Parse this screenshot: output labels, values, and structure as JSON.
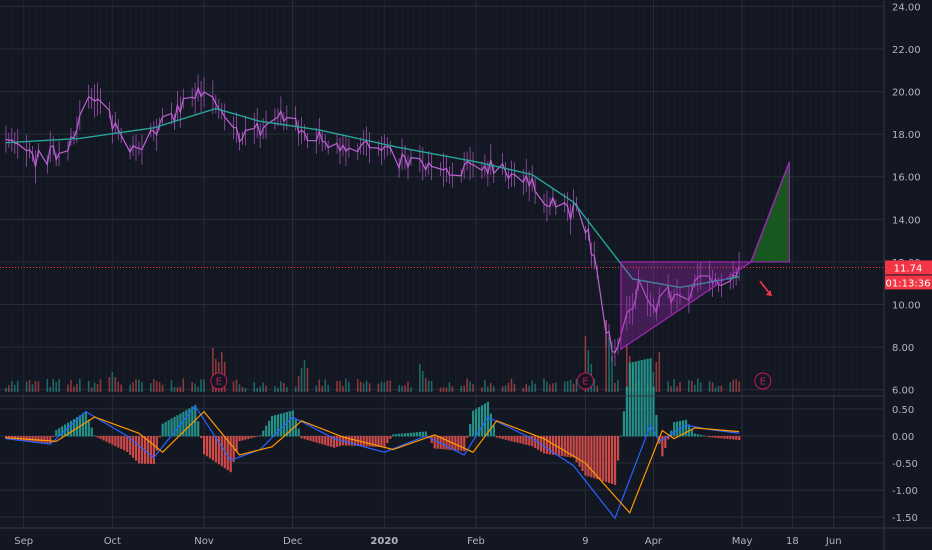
{
  "chart_data": [
    {
      "type": "candlestick",
      "panel": "price",
      "title": "",
      "y_ticks": [
        "24.00",
        "22.00",
        "20.00",
        "18.00",
        "16.00",
        "14.00",
        "12.00",
        "10.00",
        "8.00",
        "6.00"
      ],
      "ylim": [
        5.75,
        24.3
      ],
      "x_ticks": [
        "Sep",
        "Oct",
        "Nov",
        "Dec",
        "2020",
        "Feb",
        "9",
        "Apr",
        "May",
        "18",
        "Jun"
      ],
      "price_path": [
        [
          "2019-08-26",
          17.5
        ],
        [
          "2019-09-05",
          16.8
        ],
        [
          "2019-09-15",
          17.2
        ],
        [
          "2019-09-22",
          19.6
        ],
        [
          "2019-09-28",
          19.3
        ],
        [
          "2019-10-06",
          17.5
        ],
        [
          "2019-10-15",
          17.9
        ],
        [
          "2019-10-22",
          19.0
        ],
        [
          "2019-10-29",
          19.9
        ],
        [
          "2019-11-04",
          19.5
        ],
        [
          "2019-11-10",
          18.0
        ],
        [
          "2019-11-20",
          18.2
        ],
        [
          "2019-11-27",
          18.9
        ],
        [
          "2019-12-05",
          18.0
        ],
        [
          "2019-12-15",
          17.6
        ],
        [
          "2019-12-25",
          17.5
        ],
        [
          "2020-01-05",
          16.8
        ],
        [
          "2020-01-15",
          16.5
        ],
        [
          "2020-01-25",
          15.9
        ],
        [
          "2020-02-01",
          16.6
        ],
        [
          "2020-02-10",
          16.5
        ],
        [
          "2020-02-20",
          15.5
        ],
        [
          "2020-03-01",
          14.6
        ],
        [
          "2020-03-08",
          14.2
        ],
        [
          "2020-03-12",
          12.0
        ],
        [
          "2020-03-16",
          9.0
        ],
        [
          "2020-03-19",
          7.5
        ],
        [
          "2020-03-23",
          9.2
        ],
        [
          "2020-03-27",
          11.0
        ],
        [
          "2020-04-01",
          9.8
        ],
        [
          "2020-04-06",
          10.4
        ],
        [
          "2020-04-12",
          10.5
        ],
        [
          "2020-04-18",
          11.1
        ],
        [
          "2020-04-24",
          11.3
        ],
        [
          "2020-04-30",
          11.6
        ]
      ],
      "moving_average": [
        [
          "2019-08-26",
          17.6
        ],
        [
          "2019-09-20",
          17.8
        ],
        [
          "2019-10-15",
          18.3
        ],
        [
          "2019-11-05",
          19.2
        ],
        [
          "2019-11-20",
          18.6
        ],
        [
          "2019-12-10",
          18.2
        ],
        [
          "2020-01-05",
          17.4
        ],
        [
          "2020-02-01",
          16.7
        ],
        [
          "2020-02-20",
          16.1
        ],
        [
          "2020-03-05",
          14.8
        ],
        [
          "2020-03-15",
          13.0
        ],
        [
          "2020-03-25",
          11.2
        ],
        [
          "2020-04-10",
          10.8
        ],
        [
          "2020-04-30",
          11.3
        ]
      ],
      "volume_spikes": [
        [
          "2019-10-01",
          0.25
        ],
        [
          "2019-11-04",
          0.55
        ],
        [
          "2019-11-07",
          0.5
        ],
        [
          "2019-12-05",
          0.4
        ],
        [
          "2020-01-13",
          0.35
        ],
        [
          "2020-03-09",
          0.7
        ],
        [
          "2020-03-16",
          0.9
        ],
        [
          "2020-03-23",
          0.6
        ],
        [
          "2020-04-03",
          0.5
        ]
      ],
      "earnings_markers": [
        {
          "date": "2019-11-06",
          "label": "E"
        },
        {
          "date": "2020-03-09",
          "label": "E"
        },
        {
          "date": "2020-05-08",
          "label": "E"
        }
      ],
      "drawings": {
        "resistance_level": 12.0,
        "triangle": {
          "apex": [
            "2020-05-04",
            12.0
          ],
          "top_left": [
            "2020-03-21",
            12.0
          ],
          "bottom_left": [
            "2020-03-21",
            7.9
          ]
        },
        "target_box": {
          "from": [
            "2020-05-04",
            12.0
          ],
          "to_date": "2020-05-17",
          "target": 16.7
        },
        "arrow": {
          "from": [
            "2020-05-07",
            11.1
          ],
          "to": [
            "2020-05-11",
            10.4
          ],
          "color": "#f23645"
        }
      },
      "last_price": {
        "value": 11.74,
        "label": "11.74",
        "countdown": "01:13:36",
        "color": "#f23645"
      }
    },
    {
      "type": "macd",
      "panel": "indicator",
      "y_ticks": [
        "0.50",
        "0.00",
        "-0.50",
        "-1.00",
        "-1.50"
      ],
      "ylim": [
        -1.7,
        0.72
      ],
      "macd_line": [
        [
          "2019-08-26",
          -0.05
        ],
        [
          "2019-09-10",
          -0.15
        ],
        [
          "2019-09-22",
          0.45
        ],
        [
          "2019-10-06",
          0.0
        ],
        [
          "2019-10-15",
          -0.4
        ],
        [
          "2019-10-29",
          0.55
        ],
        [
          "2019-11-10",
          -0.45
        ],
        [
          "2019-11-20",
          -0.25
        ],
        [
          "2019-12-01",
          0.35
        ],
        [
          "2019-12-15",
          -0.05
        ],
        [
          "2020-01-01",
          -0.3
        ],
        [
          "2020-01-15",
          0.0
        ],
        [
          "2020-01-28",
          -0.35
        ],
        [
          "2020-02-05",
          0.35
        ],
        [
          "2020-02-20",
          -0.05
        ],
        [
          "2020-03-05",
          -0.55
        ],
        [
          "2020-03-19",
          -1.52
        ],
        [
          "2020-03-31",
          0.2
        ],
        [
          "2020-04-03",
          -0.1
        ],
        [
          "2020-04-12",
          0.2
        ],
        [
          "2020-04-20",
          0.12
        ],
        [
          "2020-04-30",
          0.05
        ]
      ],
      "signal_line": [
        [
          "2019-08-26",
          -0.03
        ],
        [
          "2019-09-12",
          -0.1
        ],
        [
          "2019-09-25",
          0.35
        ],
        [
          "2019-10-10",
          0.05
        ],
        [
          "2019-10-18",
          -0.3
        ],
        [
          "2019-11-01",
          0.45
        ],
        [
          "2019-11-13",
          -0.35
        ],
        [
          "2019-11-24",
          -0.2
        ],
        [
          "2019-12-04",
          0.28
        ],
        [
          "2019-12-18",
          -0.02
        ],
        [
          "2020-01-04",
          -0.25
        ],
        [
          "2020-01-18",
          0.02
        ],
        [
          "2020-01-31",
          -0.3
        ],
        [
          "2020-02-08",
          0.28
        ],
        [
          "2020-02-24",
          -0.05
        ],
        [
          "2020-03-09",
          -0.5
        ],
        [
          "2020-03-24",
          -1.42
        ],
        [
          "2020-04-04",
          0.1
        ],
        [
          "2020-04-08",
          -0.05
        ],
        [
          "2020-04-15",
          0.15
        ],
        [
          "2020-04-30",
          0.08
        ]
      ],
      "histogram_colors": {
        "positive": "#26a69a",
        "negative": "#ef5350"
      },
      "line_colors": {
        "macd": "#2962ff",
        "signal": "#ff9800"
      }
    }
  ],
  "colors": {
    "background": "#131722",
    "grid": "#2a2e39",
    "price_line": "#c061d6",
    "moving_average": "#26a69a",
    "pattern": "#9c27b0",
    "target_fill": "#1b5e20"
  }
}
